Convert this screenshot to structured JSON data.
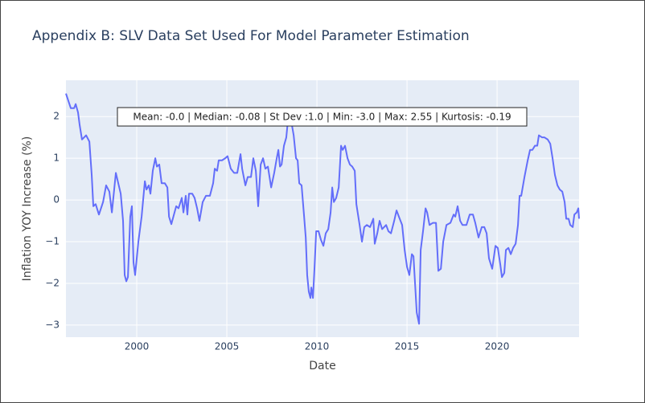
{
  "chart_data": {
    "type": "line",
    "title": "Appendix B: SLV Data Set Used For Model Parameter Estimation",
    "xlabel": "Date",
    "ylabel": "Inflation YOY Increase (%)",
    "annotation": "Mean: -0.0 | Median: -0.08 | St Dev :1.0 | Min: -3.0 | Max: 2.55 | Kurtosis: -0.19",
    "grid": true,
    "xlim": [
      1996.07,
      2024.55
    ],
    "ylim": [
      -3.29,
      2.87
    ],
    "xticks": [
      2000,
      2005,
      2010,
      2015,
      2020
    ],
    "yticks": [
      {
        "value": -3,
        "label": "−3"
      },
      {
        "value": -2,
        "label": "−2"
      },
      {
        "value": -1,
        "label": "−1"
      },
      0,
      1,
      2
    ],
    "x": [
      1996.07,
      1996.34,
      1996.52,
      1996.61,
      1996.74,
      1996.83,
      1996.96,
      1997.19,
      1997.37,
      1997.5,
      1997.59,
      1997.72,
      1997.9,
      1998.13,
      1998.3,
      1998.48,
      1998.62,
      1998.84,
      1999.11,
      1999.24,
      1999.33,
      1999.42,
      1999.51,
      1999.64,
      1999.73,
      1999.82,
      1999.91,
      2000.09,
      2000.27,
      2000.45,
      2000.54,
      2000.67,
      2000.76,
      2000.89,
      2001.03,
      2001.12,
      2001.25,
      2001.38,
      2001.56,
      2001.7,
      2001.79,
      2001.92,
      2002.19,
      2002.32,
      2002.5,
      2002.59,
      2002.72,
      2002.81,
      2002.9,
      2003.08,
      2003.21,
      2003.35,
      2003.48,
      2003.66,
      2003.84,
      2004.06,
      2004.24,
      2004.33,
      2004.46,
      2004.55,
      2004.73,
      2004.91,
      2005.04,
      2005.22,
      2005.4,
      2005.58,
      2005.76,
      2005.85,
      2006.03,
      2006.16,
      2006.34,
      2006.47,
      2006.61,
      2006.74,
      2006.88,
      2007.01,
      2007.14,
      2007.28,
      2007.46,
      2007.63,
      2007.77,
      2007.86,
      2007.95,
      2008.04,
      2008.17,
      2008.3,
      2008.39,
      2008.57,
      2008.71,
      2008.84,
      2008.93,
      2009.02,
      2009.15,
      2009.29,
      2009.38,
      2009.46,
      2009.55,
      2009.64,
      2009.69,
      2009.78,
      2009.87,
      2009.96,
      2010.09,
      2010.22,
      2010.36,
      2010.49,
      2010.63,
      2010.76,
      2010.85,
      2010.94,
      2011.07,
      2011.21,
      2011.34,
      2011.43,
      2011.56,
      2011.7,
      2011.83,
      2011.96,
      2012.1,
      2012.19,
      2012.37,
      2012.5,
      2012.63,
      2012.77,
      2012.95,
      2013.13,
      2013.21,
      2013.35,
      2013.48,
      2013.62,
      2013.84,
      2013.97,
      2014.11,
      2014.29,
      2014.42,
      2014.55,
      2014.73,
      2014.87,
      2015.0,
      2015.13,
      2015.27,
      2015.36,
      2015.54,
      2015.67,
      2015.76,
      2015.89,
      2016.03,
      2016.12,
      2016.25,
      2016.43,
      2016.61,
      2016.74,
      2016.88,
      2017.01,
      2017.19,
      2017.41,
      2017.59,
      2017.68,
      2017.81,
      2017.95,
      2018.08,
      2018.3,
      2018.48,
      2018.66,
      2018.79,
      2018.97,
      2019.15,
      2019.29,
      2019.42,
      2019.55,
      2019.73,
      2019.91,
      2020.04,
      2020.18,
      2020.27,
      2020.4,
      2020.49,
      2020.63,
      2020.76,
      2020.89,
      2021.03,
      2021.16,
      2021.25,
      2021.34,
      2021.52,
      2021.7,
      2021.83,
      2021.96,
      2022.1,
      2022.23,
      2022.32,
      2022.5,
      2022.63,
      2022.81,
      2022.95,
      2023.08,
      2023.21,
      2023.35,
      2023.48,
      2023.62,
      2023.75,
      2023.84,
      2023.97,
      2024.06,
      2024.2,
      2024.29,
      2024.42,
      2024.51,
      2024.55
    ],
    "series": [
      {
        "name": "SLV",
        "color": "#636efa",
        "values": [
          2.55,
          2.2,
          2.2,
          2.3,
          2.1,
          1.8,
          1.45,
          1.55,
          1.4,
          0.6,
          -0.15,
          -0.1,
          -0.35,
          -0.05,
          0.35,
          0.2,
          -0.3,
          0.65,
          0.15,
          -0.5,
          -1.8,
          -1.95,
          -1.85,
          -0.4,
          -0.15,
          -1.5,
          -1.8,
          -1.0,
          -0.4,
          0.45,
          0.25,
          0.35,
          0.15,
          0.7,
          1.0,
          0.8,
          0.85,
          0.4,
          0.4,
          0.3,
          -0.4,
          -0.58,
          -0.15,
          -0.2,
          0.05,
          -0.3,
          0.1,
          -0.35,
          0.15,
          0.15,
          0.05,
          -0.2,
          -0.5,
          -0.05,
          0.1,
          0.1,
          0.4,
          0.75,
          0.7,
          0.95,
          0.95,
          1.0,
          1.05,
          0.75,
          0.65,
          0.65,
          1.1,
          0.75,
          0.35,
          0.55,
          0.55,
          1.0,
          0.7,
          -0.15,
          0.85,
          1.0,
          0.75,
          0.8,
          0.3,
          0.65,
          1.0,
          1.2,
          0.8,
          0.85,
          1.3,
          1.5,
          1.9,
          1.9,
          1.55,
          1.0,
          0.95,
          0.4,
          0.35,
          -0.4,
          -0.9,
          -1.8,
          -2.2,
          -2.35,
          -2.1,
          -2.35,
          -1.6,
          -0.75,
          -0.75,
          -0.95,
          -1.1,
          -0.8,
          -0.7,
          -0.3,
          0.3,
          -0.05,
          0.05,
          0.3,
          1.3,
          1.2,
          1.3,
          1.0,
          0.85,
          0.8,
          0.7,
          -0.1,
          -0.6,
          -1.0,
          -0.65,
          -0.6,
          -0.65,
          -0.45,
          -1.05,
          -0.8,
          -0.5,
          -0.7,
          -0.6,
          -0.75,
          -0.8,
          -0.5,
          -0.25,
          -0.4,
          -0.6,
          -1.2,
          -1.6,
          -1.8,
          -1.3,
          -1.35,
          -2.7,
          -2.97,
          -1.2,
          -0.75,
          -0.2,
          -0.3,
          -0.6,
          -0.55,
          -0.55,
          -1.7,
          -1.65,
          -1.0,
          -0.6,
          -0.55,
          -0.35,
          -0.4,
          -0.15,
          -0.5,
          -0.6,
          -0.6,
          -0.35,
          -0.35,
          -0.55,
          -0.9,
          -0.65,
          -0.65,
          -0.8,
          -1.4,
          -1.65,
          -1.1,
          -1.15,
          -1.55,
          -1.85,
          -1.75,
          -1.2,
          -1.15,
          -1.3,
          -1.15,
          -1.05,
          -0.6,
          0.1,
          0.1,
          0.55,
          0.95,
          1.2,
          1.2,
          1.3,
          1.3,
          1.55,
          1.5,
          1.5,
          1.45,
          1.35,
          1.0,
          0.6,
          0.35,
          0.25,
          0.2,
          -0.05,
          -0.45,
          -0.45,
          -0.6,
          -0.65,
          -0.35,
          -0.3,
          -0.2,
          -0.45
        ]
      }
    ]
  }
}
